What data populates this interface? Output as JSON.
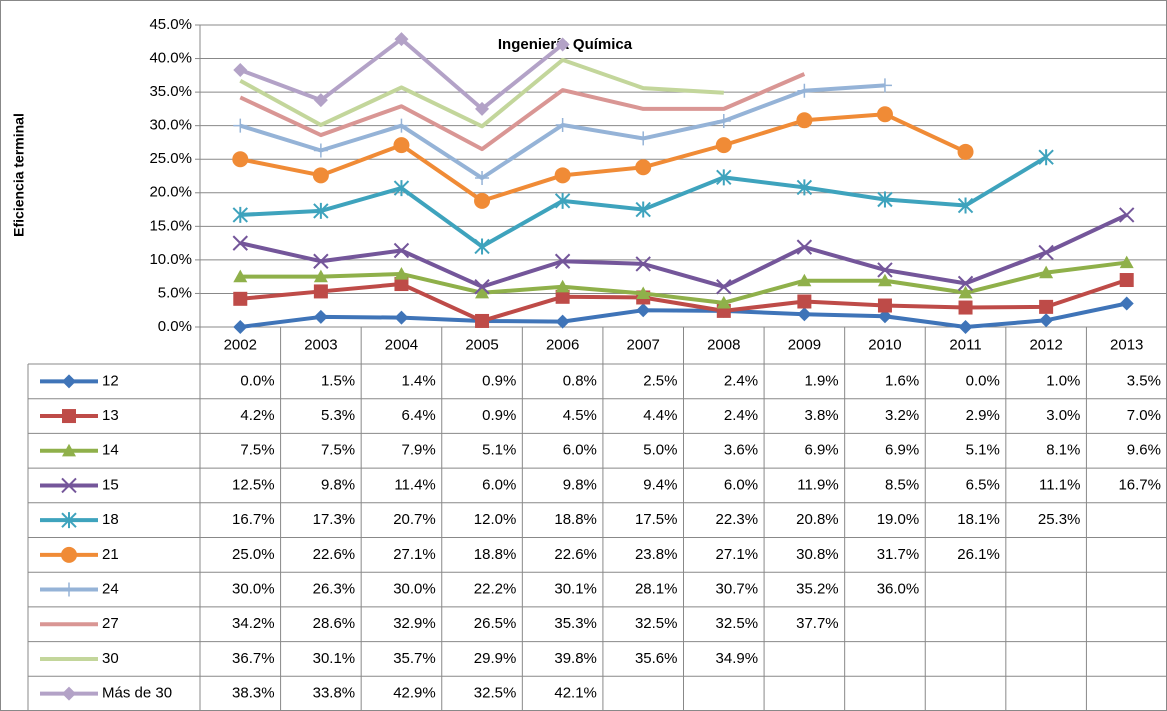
{
  "chart_data": {
    "type": "line",
    "title": "Ingeniería Química",
    "y_label": "Eficiencia terminal",
    "categories": [
      "2002",
      "2003",
      "2004",
      "2005",
      "2006",
      "2007",
      "2008",
      "2009",
      "2010",
      "2011",
      "2012",
      "2013"
    ],
    "ylim": [
      0,
      45
    ],
    "yticks": [
      {
        "value": 0,
        "label": "0.0%"
      },
      {
        "value": 5,
        "label": "5.0%"
      },
      {
        "value": 10,
        "label": "10.0%"
      },
      {
        "value": 15,
        "label": "15.0%"
      },
      {
        "value": 20,
        "label": "20.0%"
      },
      {
        "value": 25,
        "label": "25.0%"
      },
      {
        "value": 30,
        "label": "30.0%"
      },
      {
        "value": 35,
        "label": "35.0%"
      },
      {
        "value": 40,
        "label": "40.0%"
      },
      {
        "value": 45,
        "label": "45.0%"
      }
    ],
    "grid": true,
    "series": [
      {
        "name": "12",
        "color": "#3f74b8",
        "marker": "diamond",
        "values": [
          0.0,
          1.5,
          1.4,
          0.9,
          0.8,
          2.5,
          2.4,
          1.9,
          1.6,
          0.0,
          1.0,
          3.5
        ],
        "value_labels": [
          "0.0%",
          "1.5%",
          "1.4%",
          "0.9%",
          "0.8%",
          "2.5%",
          "2.4%",
          "1.9%",
          "1.6%",
          "0.0%",
          "1.0%",
          "3.5%"
        ]
      },
      {
        "name": "13",
        "color": "#be4b48",
        "marker": "square",
        "values": [
          4.2,
          5.3,
          6.4,
          0.9,
          4.5,
          4.4,
          2.4,
          3.8,
          3.2,
          2.9,
          3.0,
          7.0
        ],
        "value_labels": [
          "4.2%",
          "5.3%",
          "6.4%",
          "0.9%",
          "4.5%",
          "4.4%",
          "2.4%",
          "3.8%",
          "3.2%",
          "2.9%",
          "3.0%",
          "7.0%"
        ]
      },
      {
        "name": "14",
        "color": "#8fb04a",
        "marker": "triangle",
        "values": [
          7.5,
          7.5,
          7.9,
          5.1,
          6.0,
          5.0,
          3.6,
          6.9,
          6.9,
          5.1,
          8.1,
          9.6
        ],
        "value_labels": [
          "7.5%",
          "7.5%",
          "7.9%",
          "5.1%",
          "6.0%",
          "5.0%",
          "3.6%",
          "6.9%",
          "6.9%",
          "5.1%",
          "8.1%",
          "9.6%"
        ]
      },
      {
        "name": "15",
        "color": "#74569a",
        "marker": "x",
        "values": [
          12.5,
          9.8,
          11.4,
          6.0,
          9.8,
          9.4,
          6.0,
          11.9,
          8.5,
          6.5,
          11.1,
          16.7
        ],
        "value_labels": [
          "12.5%",
          "9.8%",
          "11.4%",
          "6.0%",
          "9.8%",
          "9.4%",
          "6.0%",
          "11.9%",
          "8.5%",
          "6.5%",
          "11.1%",
          "16.7%"
        ]
      },
      {
        "name": "18",
        "color": "#3ea3bd",
        "marker": "asterisk",
        "values": [
          16.7,
          17.3,
          20.7,
          12.0,
          18.8,
          17.5,
          22.3,
          20.8,
          19.0,
          18.1,
          25.3,
          null
        ],
        "value_labels": [
          "16.7%",
          "17.3%",
          "20.7%",
          "12.0%",
          "18.8%",
          "17.5%",
          "22.3%",
          "20.8%",
          "19.0%",
          "18.1%",
          "25.3%",
          null
        ]
      },
      {
        "name": "21",
        "color": "#f08b36",
        "marker": "circle",
        "values": [
          25.0,
          22.6,
          27.1,
          18.8,
          22.6,
          23.8,
          27.1,
          30.8,
          31.7,
          26.1,
          null,
          null
        ],
        "value_labels": [
          "25.0%",
          "22.6%",
          "27.1%",
          "18.8%",
          "22.6%",
          "23.8%",
          "27.1%",
          "30.8%",
          "31.7%",
          "26.1%",
          null,
          null
        ]
      },
      {
        "name": "24",
        "color": "#95b3d7",
        "marker": "plus",
        "values": [
          30.0,
          26.3,
          30.0,
          22.2,
          30.1,
          28.1,
          30.7,
          35.2,
          36.0,
          null,
          null,
          null
        ],
        "value_labels": [
          "30.0%",
          "26.3%",
          "30.0%",
          "22.2%",
          "30.1%",
          "28.1%",
          "30.7%",
          "35.2%",
          "36.0%",
          null,
          null,
          null
        ]
      },
      {
        "name": "27",
        "color": "#d99694",
        "marker": "none",
        "values": [
          34.2,
          28.6,
          32.9,
          26.5,
          35.3,
          32.5,
          32.5,
          37.7,
          null,
          null,
          null,
          null
        ],
        "value_labels": [
          "34.2%",
          "28.6%",
          "32.9%",
          "26.5%",
          "35.3%",
          "32.5%",
          "32.5%",
          "37.7%",
          null,
          null,
          null,
          null
        ]
      },
      {
        "name": "30",
        "color": "#c3d69b",
        "marker": "none",
        "values": [
          36.7,
          30.1,
          35.7,
          29.9,
          39.8,
          35.6,
          34.9,
          null,
          null,
          null,
          null,
          null
        ],
        "value_labels": [
          "36.7%",
          "30.1%",
          "35.7%",
          "29.9%",
          "39.8%",
          "35.6%",
          "34.9%",
          null,
          null,
          null,
          null,
          null
        ]
      },
      {
        "name": "Más de 30",
        "color": "#b3a2c7",
        "marker": "diamond",
        "values": [
          38.3,
          33.8,
          42.9,
          32.5,
          42.1,
          null,
          null,
          null,
          null,
          null,
          null,
          null
        ],
        "value_labels": [
          "38.3%",
          "33.8%",
          "42.9%",
          "32.5%",
          "42.1%",
          null,
          null,
          null,
          null,
          null,
          null,
          null
        ]
      }
    ]
  }
}
